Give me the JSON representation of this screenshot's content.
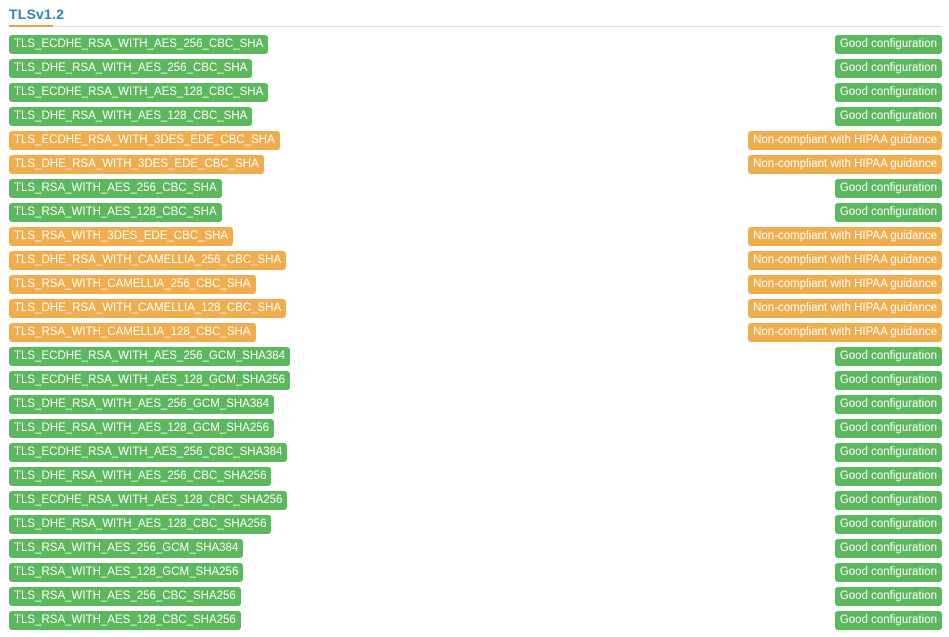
{
  "section": {
    "title": "TLSv1.2"
  },
  "colors": {
    "good": "#5cb85c",
    "warn": "#f0ad4e",
    "title": "#2e86b7"
  },
  "ciphers": [
    {
      "name": "TLS_ECDHE_RSA_WITH_AES_256_CBC_SHA",
      "status": "Good configuration",
      "level": "good"
    },
    {
      "name": "TLS_DHE_RSA_WITH_AES_256_CBC_SHA",
      "status": "Good configuration",
      "level": "good"
    },
    {
      "name": "TLS_ECDHE_RSA_WITH_AES_128_CBC_SHA",
      "status": "Good configuration",
      "level": "good"
    },
    {
      "name": "TLS_DHE_RSA_WITH_AES_128_CBC_SHA",
      "status": "Good configuration",
      "level": "good"
    },
    {
      "name": "TLS_ECDHE_RSA_WITH_3DES_EDE_CBC_SHA",
      "status": "Non-compliant with HIPAA guidance",
      "level": "warn"
    },
    {
      "name": "TLS_DHE_RSA_WITH_3DES_EDE_CBC_SHA",
      "status": "Non-compliant with HIPAA guidance",
      "level": "warn"
    },
    {
      "name": "TLS_RSA_WITH_AES_256_CBC_SHA",
      "status": "Good configuration",
      "level": "good"
    },
    {
      "name": "TLS_RSA_WITH_AES_128_CBC_SHA",
      "status": "Good configuration",
      "level": "good"
    },
    {
      "name": "TLS_RSA_WITH_3DES_EDE_CBC_SHA",
      "status": "Non-compliant with HIPAA guidance",
      "level": "warn"
    },
    {
      "name": "TLS_DHE_RSA_WITH_CAMELLIA_256_CBC_SHA",
      "status": "Non-compliant with HIPAA guidance",
      "level": "warn"
    },
    {
      "name": "TLS_RSA_WITH_CAMELLIA_256_CBC_SHA",
      "status": "Non-compliant with HIPAA guidance",
      "level": "warn"
    },
    {
      "name": "TLS_DHE_RSA_WITH_CAMELLIA_128_CBC_SHA",
      "status": "Non-compliant with HIPAA guidance",
      "level": "warn"
    },
    {
      "name": "TLS_RSA_WITH_CAMELLIA_128_CBC_SHA",
      "status": "Non-compliant with HIPAA guidance",
      "level": "warn"
    },
    {
      "name": "TLS_ECDHE_RSA_WITH_AES_256_GCM_SHA384",
      "status": "Good configuration",
      "level": "good"
    },
    {
      "name": "TLS_ECDHE_RSA_WITH_AES_128_GCM_SHA256",
      "status": "Good configuration",
      "level": "good"
    },
    {
      "name": "TLS_DHE_RSA_WITH_AES_256_GCM_SHA384",
      "status": "Good configuration",
      "level": "good"
    },
    {
      "name": "TLS_DHE_RSA_WITH_AES_128_GCM_SHA256",
      "status": "Good configuration",
      "level": "good"
    },
    {
      "name": "TLS_ECDHE_RSA_WITH_AES_256_CBC_SHA384",
      "status": "Good configuration",
      "level": "good"
    },
    {
      "name": "TLS_DHE_RSA_WITH_AES_256_CBC_SHA256",
      "status": "Good configuration",
      "level": "good"
    },
    {
      "name": "TLS_ECDHE_RSA_WITH_AES_128_CBC_SHA256",
      "status": "Good configuration",
      "level": "good"
    },
    {
      "name": "TLS_DHE_RSA_WITH_AES_128_CBC_SHA256",
      "status": "Good configuration",
      "level": "good"
    },
    {
      "name": "TLS_RSA_WITH_AES_256_GCM_SHA384",
      "status": "Good configuration",
      "level": "good"
    },
    {
      "name": "TLS_RSA_WITH_AES_128_GCM_SHA256",
      "status": "Good configuration",
      "level": "good"
    },
    {
      "name": "TLS_RSA_WITH_AES_256_CBC_SHA256",
      "status": "Good configuration",
      "level": "good"
    },
    {
      "name": "TLS_RSA_WITH_AES_128_CBC_SHA256",
      "status": "Good configuration",
      "level": "good"
    }
  ]
}
